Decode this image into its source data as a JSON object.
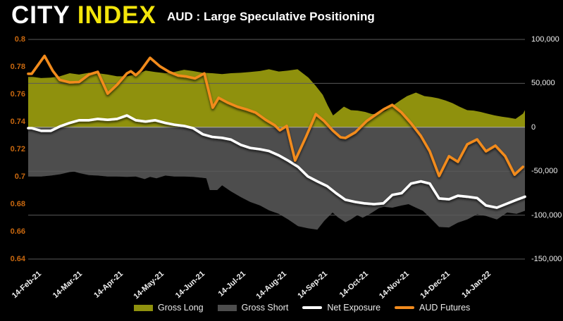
{
  "header": {
    "logo_city": "CITY",
    "logo_index": "INDEX",
    "title": "AUD : Large Speculative Positioning"
  },
  "colors": {
    "background": "#000000",
    "logo_city": "#ffffff",
    "logo_index": "#f2e50b",
    "gross_long": "#8f910e",
    "gross_short": "#4d4d4d",
    "net_exposure": "#ffffff",
    "aud_futures": "#f28b1e",
    "left_axis_text": "#c9680f",
    "right_axis_text": "#efefef",
    "gridline": "#5a5a5a",
    "zero_line": "#a8a8a8"
  },
  "chart_data": {
    "type": "area-line combo (COT positioning)",
    "title": "AUD : Large Speculative Positioning",
    "grid": "horizontal gridlines on",
    "legend_position": "bottom",
    "left_axis": {
      "side": "left",
      "range": [
        0.64,
        0.8
      ],
      "ticks": [
        {
          "label": "0.8",
          "value": 0.8
        },
        {
          "label": "0.78",
          "value": 0.78
        },
        {
          "label": "0.76",
          "value": 0.76
        },
        {
          "label": "0.74",
          "value": 0.74
        },
        {
          "label": "0.72",
          "value": 0.72
        },
        {
          "label": "0.7",
          "value": 0.7
        },
        {
          "label": "0.68",
          "value": 0.68
        },
        {
          "label": "0.66",
          "value": 0.66
        },
        {
          "label": "0.64",
          "value": 0.64
        }
      ]
    },
    "right_axis": {
      "side": "right",
      "range": [
        -150000,
        100000
      ],
      "ticks": [
        {
          "label": "100,000",
          "value": 100000
        },
        {
          "label": "50,000",
          "value": 50000
        },
        {
          "label": "0",
          "value": 0
        },
        {
          "label": "-50,000",
          "value": -50000
        },
        {
          "label": "-100,000",
          "value": -100000
        },
        {
          "label": "-150,000",
          "value": -150000
        }
      ]
    },
    "x_axis": {
      "ticks": [
        "14-Feb-21",
        "14-Mar-21",
        "14-Apr-21",
        "14-May-21",
        "14-Jun-21",
        "14-Jul-21",
        "14-Aug-21",
        "14-Sep-21",
        "14-Oct-21",
        "14-Nov-21",
        "14-Dec-21",
        "14-Jan-22"
      ]
    },
    "series": [
      {
        "name": "Gross Long",
        "type": "area",
        "axis": "right",
        "color": "#8f910e",
        "points": [
          [
            0,
            57500
          ],
          [
            0.019,
            56000
          ],
          [
            0.039,
            56500
          ],
          [
            0.057,
            58000
          ],
          [
            0.077,
            61500
          ],
          [
            0.096,
            60000
          ],
          [
            0.116,
            62000
          ],
          [
            0.134,
            61500
          ],
          [
            0.154,
            60000
          ],
          [
            0.173,
            58000
          ],
          [
            0.193,
            58000
          ],
          [
            0.211,
            60000
          ],
          [
            0.231,
            64500
          ],
          [
            0.25,
            63000
          ],
          [
            0.271,
            61500
          ],
          [
            0.289,
            63000
          ],
          [
            0.309,
            65500
          ],
          [
            0.327,
            64000
          ],
          [
            0.347,
            62000
          ],
          [
            0.366,
            61500
          ],
          [
            0.386,
            60500
          ],
          [
            0.404,
            61500
          ],
          [
            0.424,
            62000
          ],
          [
            0.443,
            63000
          ],
          [
            0.463,
            64000
          ],
          [
            0.481,
            66000
          ],
          [
            0.501,
            63500
          ],
          [
            0.52,
            64500
          ],
          [
            0.539,
            66000
          ],
          [
            0.561,
            56500
          ],
          [
            0.576,
            47000
          ],
          [
            0.59,
            37000
          ],
          [
            0.6,
            25000
          ],
          [
            0.611,
            13500
          ],
          [
            0.633,
            23500
          ],
          [
            0.647,
            19500
          ],
          [
            0.661,
            19000
          ],
          [
            0.676,
            17500
          ],
          [
            0.69,
            15000
          ],
          [
            0.704,
            15500
          ],
          [
            0.719,
            19500
          ],
          [
            0.733,
            25000
          ],
          [
            0.747,
            30500
          ],
          [
            0.761,
            35500
          ],
          [
            0.779,
            39500
          ],
          [
            0.796,
            35500
          ],
          [
            0.81,
            34500
          ],
          [
            0.824,
            33000
          ],
          [
            0.839,
            30500
          ],
          [
            0.853,
            27500
          ],
          [
            0.867,
            23500
          ],
          [
            0.883,
            19500
          ],
          [
            0.896,
            19000
          ],
          [
            0.91,
            17500
          ],
          [
            0.924,
            15500
          ],
          [
            0.939,
            13500
          ],
          [
            0.953,
            12000
          ],
          [
            0.967,
            11000
          ],
          [
            0.981,
            9500
          ],
          [
            0.996,
            15500
          ],
          [
            1,
            19500
          ]
        ]
      },
      {
        "name": "Gross Short",
        "type": "area",
        "axis": "right",
        "color": "#4d4d4d",
        "points": [
          [
            0,
            -56000
          ],
          [
            0.019,
            -56000
          ],
          [
            0.039,
            -55000
          ],
          [
            0.057,
            -53500
          ],
          [
            0.077,
            -51000
          ],
          [
            0.086,
            -50500
          ],
          [
            0.096,
            -52000
          ],
          [
            0.116,
            -54500
          ],
          [
            0.134,
            -55000
          ],
          [
            0.154,
            -56000
          ],
          [
            0.173,
            -56000
          ],
          [
            0.193,
            -56500
          ],
          [
            0.211,
            -56000
          ],
          [
            0.229,
            -59000
          ],
          [
            0.24,
            -56500
          ],
          [
            0.253,
            -58000
          ],
          [
            0.271,
            -55000
          ],
          [
            0.289,
            -56000
          ],
          [
            0.309,
            -56000
          ],
          [
            0.327,
            -56500
          ],
          [
            0.347,
            -57500
          ],
          [
            0.354,
            -58000
          ],
          [
            0.361,
            -71500
          ],
          [
            0.376,
            -71500
          ],
          [
            0.386,
            -66000
          ],
          [
            0.404,
            -73000
          ],
          [
            0.424,
            -79500
          ],
          [
            0.443,
            -85000
          ],
          [
            0.463,
            -89000
          ],
          [
            0.481,
            -94500
          ],
          [
            0.501,
            -98500
          ],
          [
            0.52,
            -105000
          ],
          [
            0.54,
            -112500
          ],
          [
            0.56,
            -115000
          ],
          [
            0.579,
            -116500
          ],
          [
            0.593,
            -106500
          ],
          [
            0.61,
            -97000
          ],
          [
            0.621,
            -102500
          ],
          [
            0.636,
            -108000
          ],
          [
            0.647,
            -105000
          ],
          [
            0.66,
            -100000
          ],
          [
            0.671,
            -103000
          ],
          [
            0.686,
            -98500
          ],
          [
            0.704,
            -92000
          ],
          [
            0.714,
            -90500
          ],
          [
            0.731,
            -91500
          ],
          [
            0.75,
            -89000
          ],
          [
            0.764,
            -87500
          ],
          [
            0.779,
            -91500
          ],
          [
            0.793,
            -95000
          ],
          [
            0.807,
            -102500
          ],
          [
            0.826,
            -113500
          ],
          [
            0.846,
            -114000
          ],
          [
            0.864,
            -108500
          ],
          [
            0.883,
            -105000
          ],
          [
            0.903,
            -99000
          ],
          [
            0.921,
            -101000
          ],
          [
            0.943,
            -105000
          ],
          [
            0.964,
            -97000
          ],
          [
            0.983,
            -98500
          ],
          [
            1,
            -95000
          ]
        ]
      },
      {
        "name": "Net Exposure",
        "type": "line",
        "axis": "right",
        "color": "#ffffff",
        "points": [
          [
            0,
            -1000
          ],
          [
            0.019,
            -4000
          ],
          [
            0.039,
            -4000
          ],
          [
            0.057,
            1000
          ],
          [
            0.077,
            5000
          ],
          [
            0.096,
            8000
          ],
          [
            0.116,
            8000
          ],
          [
            0.134,
            9500
          ],
          [
            0.154,
            8500
          ],
          [
            0.173,
            9500
          ],
          [
            0.193,
            13500
          ],
          [
            0.211,
            8000
          ],
          [
            0.231,
            6500
          ],
          [
            0.25,
            8000
          ],
          [
            0.271,
            5000
          ],
          [
            0.289,
            3000
          ],
          [
            0.309,
            1500
          ],
          [
            0.327,
            -1000
          ],
          [
            0.347,
            -8000
          ],
          [
            0.366,
            -11000
          ],
          [
            0.386,
            -12000
          ],
          [
            0.404,
            -14000
          ],
          [
            0.424,
            -20000
          ],
          [
            0.443,
            -23500
          ],
          [
            0.463,
            -25000
          ],
          [
            0.481,
            -27000
          ],
          [
            0.501,
            -32000
          ],
          [
            0.52,
            -38000
          ],
          [
            0.54,
            -45000
          ],
          [
            0.56,
            -56000
          ],
          [
            0.579,
            -61500
          ],
          [
            0.599,
            -67000
          ],
          [
            0.617,
            -75000
          ],
          [
            0.636,
            -82500
          ],
          [
            0.656,
            -85000
          ],
          [
            0.674,
            -86500
          ],
          [
            0.694,
            -87500
          ],
          [
            0.713,
            -86500
          ],
          [
            0.731,
            -77000
          ],
          [
            0.75,
            -75000
          ],
          [
            0.769,
            -64000
          ],
          [
            0.789,
            -61500
          ],
          [
            0.807,
            -64000
          ],
          [
            0.826,
            -81000
          ],
          [
            0.846,
            -82000
          ],
          [
            0.864,
            -78000
          ],
          [
            0.883,
            -79000
          ],
          [
            0.903,
            -80500
          ],
          [
            0.921,
            -89000
          ],
          [
            0.943,
            -91500
          ],
          [
            0.961,
            -87500
          ],
          [
            0.983,
            -82500
          ],
          [
            1,
            -79000
          ]
        ]
      },
      {
        "name": "AUD Futures",
        "type": "line",
        "axis": "left",
        "color": "#f28b1e",
        "points": [
          [
            0,
            0.775
          ],
          [
            0.026,
            0.788
          ],
          [
            0.043,
            0.777
          ],
          [
            0.057,
            0.7705
          ],
          [
            0.077,
            0.7687
          ],
          [
            0.096,
            0.769
          ],
          [
            0.116,
            0.7744
          ],
          [
            0.134,
            0.7764
          ],
          [
            0.154,
            0.7605
          ],
          [
            0.173,
            0.767
          ],
          [
            0.193,
            0.7753
          ],
          [
            0.201,
            0.7768
          ],
          [
            0.211,
            0.774
          ],
          [
            0.221,
            0.7773
          ],
          [
            0.24,
            0.7866
          ],
          [
            0.26,
            0.7804
          ],
          [
            0.279,
            0.7763
          ],
          [
            0.297,
            0.7737
          ],
          [
            0.314,
            0.773
          ],
          [
            0.331,
            0.7716
          ],
          [
            0.35,
            0.7753
          ],
          [
            0.367,
            0.7503
          ],
          [
            0.379,
            0.7575
          ],
          [
            0.397,
            0.754
          ],
          [
            0.417,
            0.751
          ],
          [
            0.436,
            0.749
          ],
          [
            0.454,
            0.7467
          ],
          [
            0.474,
            0.7415
          ],
          [
            0.493,
            0.7374
          ],
          [
            0.503,
            0.7338
          ],
          [
            0.517,
            0.737
          ],
          [
            0.534,
            0.7118
          ],
          [
            0.556,
            0.729
          ],
          [
            0.576,
            0.7456
          ],
          [
            0.593,
            0.7405
          ],
          [
            0.61,
            0.7338
          ],
          [
            0.626,
            0.7287
          ],
          [
            0.636,
            0.7282
          ],
          [
            0.656,
            0.7323
          ],
          [
            0.679,
            0.7405
          ],
          [
            0.697,
            0.7451
          ],
          [
            0.714,
            0.7492
          ],
          [
            0.731,
            0.7523
          ],
          [
            0.75,
            0.7467
          ],
          [
            0.769,
            0.739
          ],
          [
            0.789,
            0.7297
          ],
          [
            0.807,
            0.7185
          ],
          [
            0.826,
            0.7005
          ],
          [
            0.846,
            0.7149
          ],
          [
            0.864,
            0.7108
          ],
          [
            0.883,
            0.7236
          ],
          [
            0.903,
            0.7272
          ],
          [
            0.921,
            0.7185
          ],
          [
            0.94,
            0.7226
          ],
          [
            0.96,
            0.7149
          ],
          [
            0.979,
            0.7015
          ],
          [
            0.996,
            0.7072
          ]
        ]
      }
    ],
    "legend": [
      {
        "label": "Gross Long",
        "swatch": "area",
        "color": "#8f910e"
      },
      {
        "label": "Gross Short",
        "swatch": "area",
        "color": "#4d4d4d"
      },
      {
        "label": "Net Exposure",
        "swatch": "line",
        "color": "#ffffff"
      },
      {
        "label": "AUD Futures",
        "swatch": "line",
        "color": "#f28b1e"
      }
    ]
  }
}
